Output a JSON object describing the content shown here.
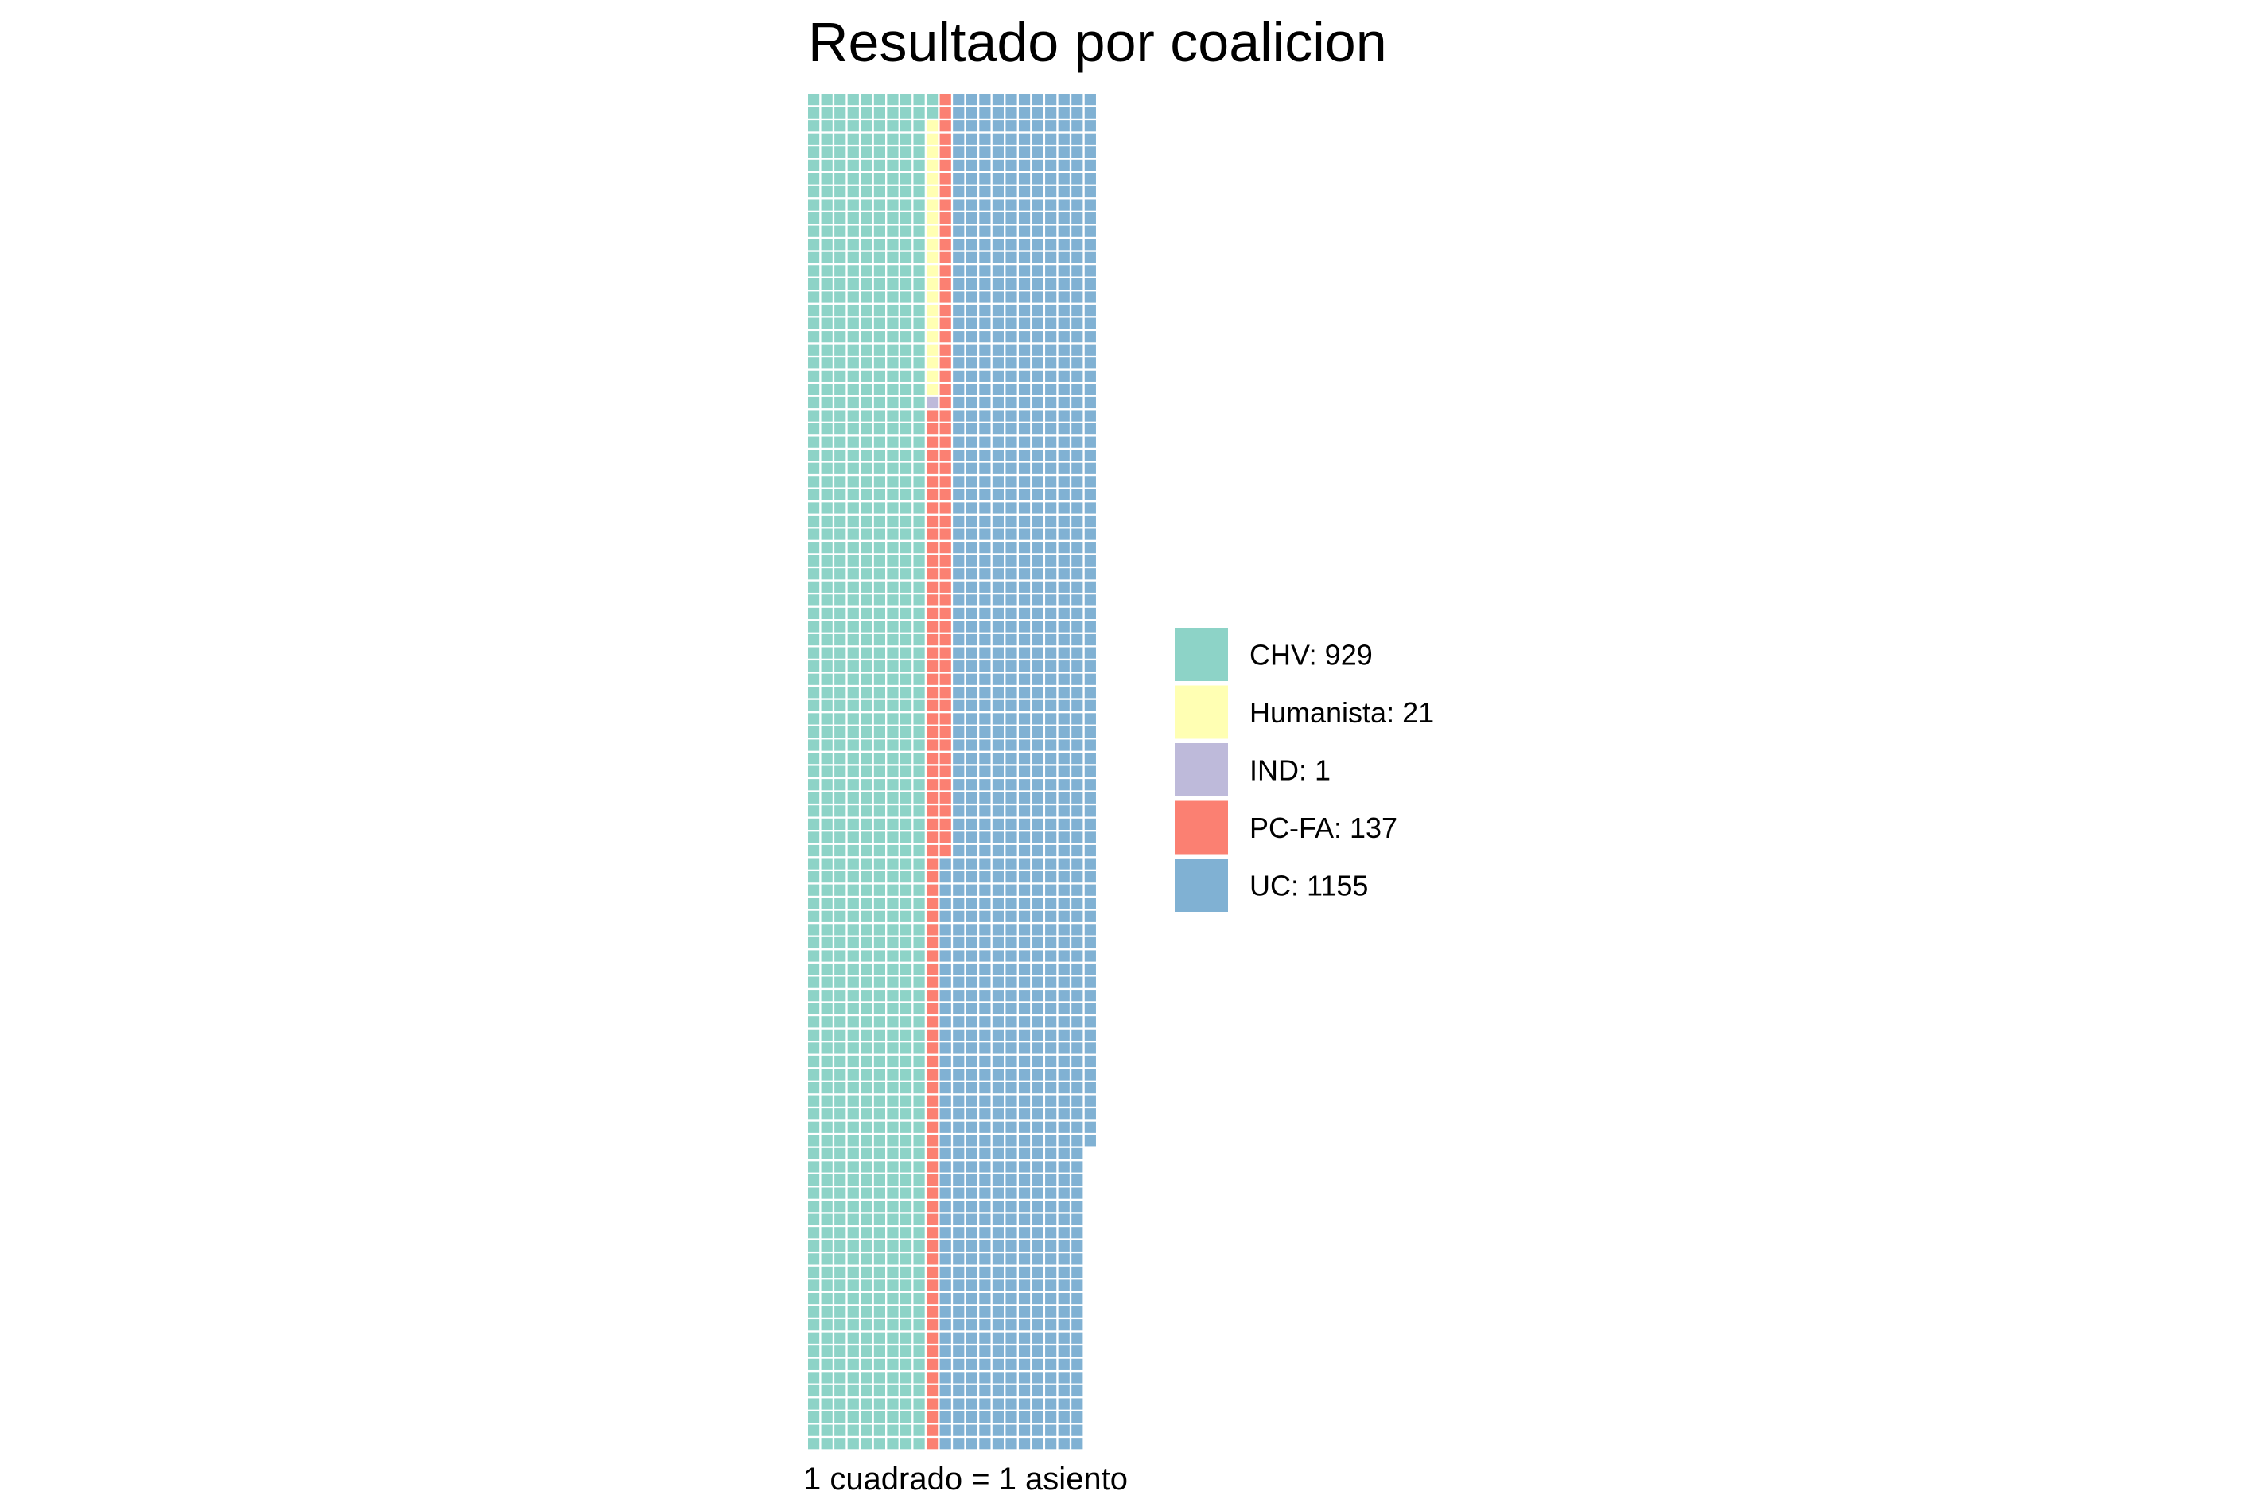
{
  "chart_data": {
    "type": "waffle",
    "title": "Resultado por coalicion",
    "caption": "1 cuadrado = 1 asiento",
    "rows": 103,
    "legend_position": "right",
    "series": [
      {
        "name": "CHV",
        "value": 929,
        "label": "CHV: 929",
        "color": "#8DD3C7"
      },
      {
        "name": "Humanista",
        "value": 21,
        "label": "Humanista: 21",
        "color": "#FFFFB3"
      },
      {
        "name": "IND",
        "value": 1,
        "label": "IND: 1",
        "color": "#BEBADA"
      },
      {
        "name": "PC-FA",
        "value": 137,
        "label": "PC-FA: 137",
        "color": "#FB8072"
      },
      {
        "name": "UC",
        "value": 1155,
        "label": "UC: 1155",
        "color": "#80B1D3"
      }
    ]
  }
}
